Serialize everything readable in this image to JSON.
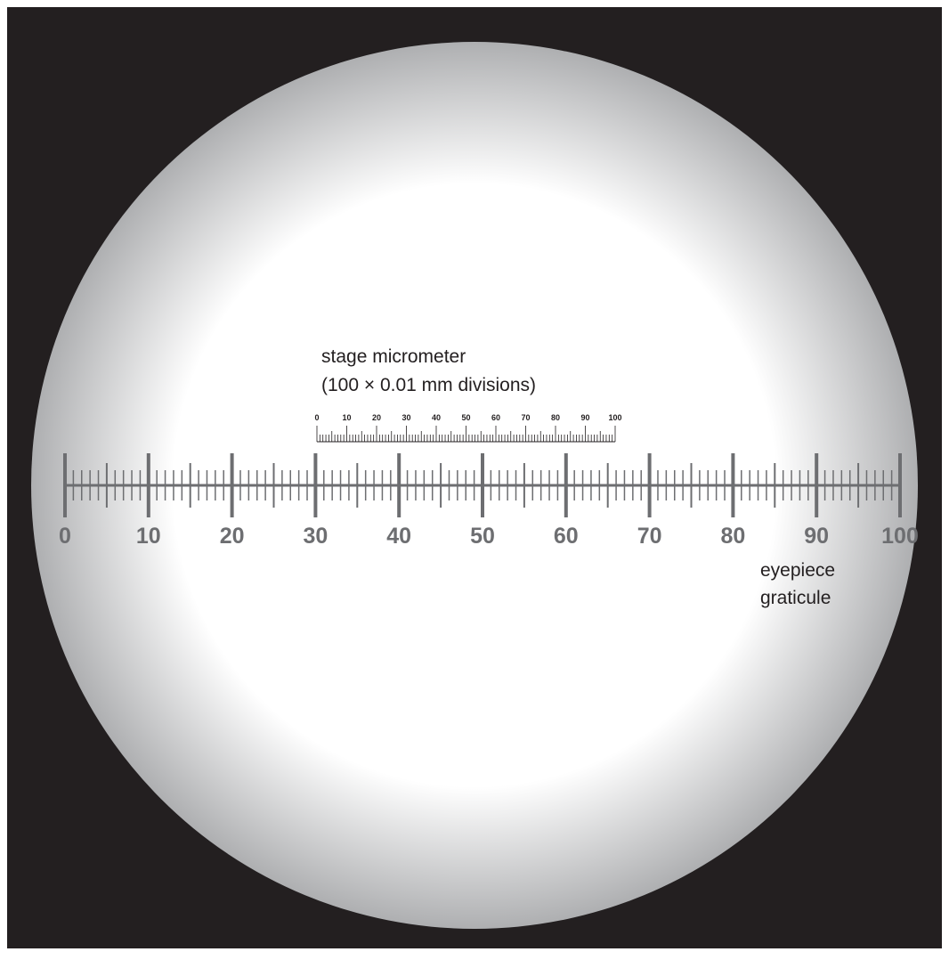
{
  "colors": {
    "background": "#231f20",
    "field_center": "#ffffff",
    "field_edge": "#aeafb1",
    "graticule": "#6d6e71",
    "micrometer": "#231f20",
    "label_text": "#231f20"
  },
  "stage_micrometer": {
    "label_line1": "stage micrometer",
    "label_line2": "(100 × 0.01 mm divisions)",
    "divisions": 100,
    "tick_labels": [
      "0",
      "10",
      "20",
      "30",
      "40",
      "50",
      "60",
      "70",
      "80",
      "90",
      "100"
    ]
  },
  "eyepiece_graticule": {
    "label_line1": "eyepiece",
    "label_line2": "graticule",
    "divisions": 100,
    "tick_labels": [
      "0",
      "10",
      "20",
      "30",
      "40",
      "50",
      "60",
      "70",
      "80",
      "90",
      "100"
    ]
  }
}
